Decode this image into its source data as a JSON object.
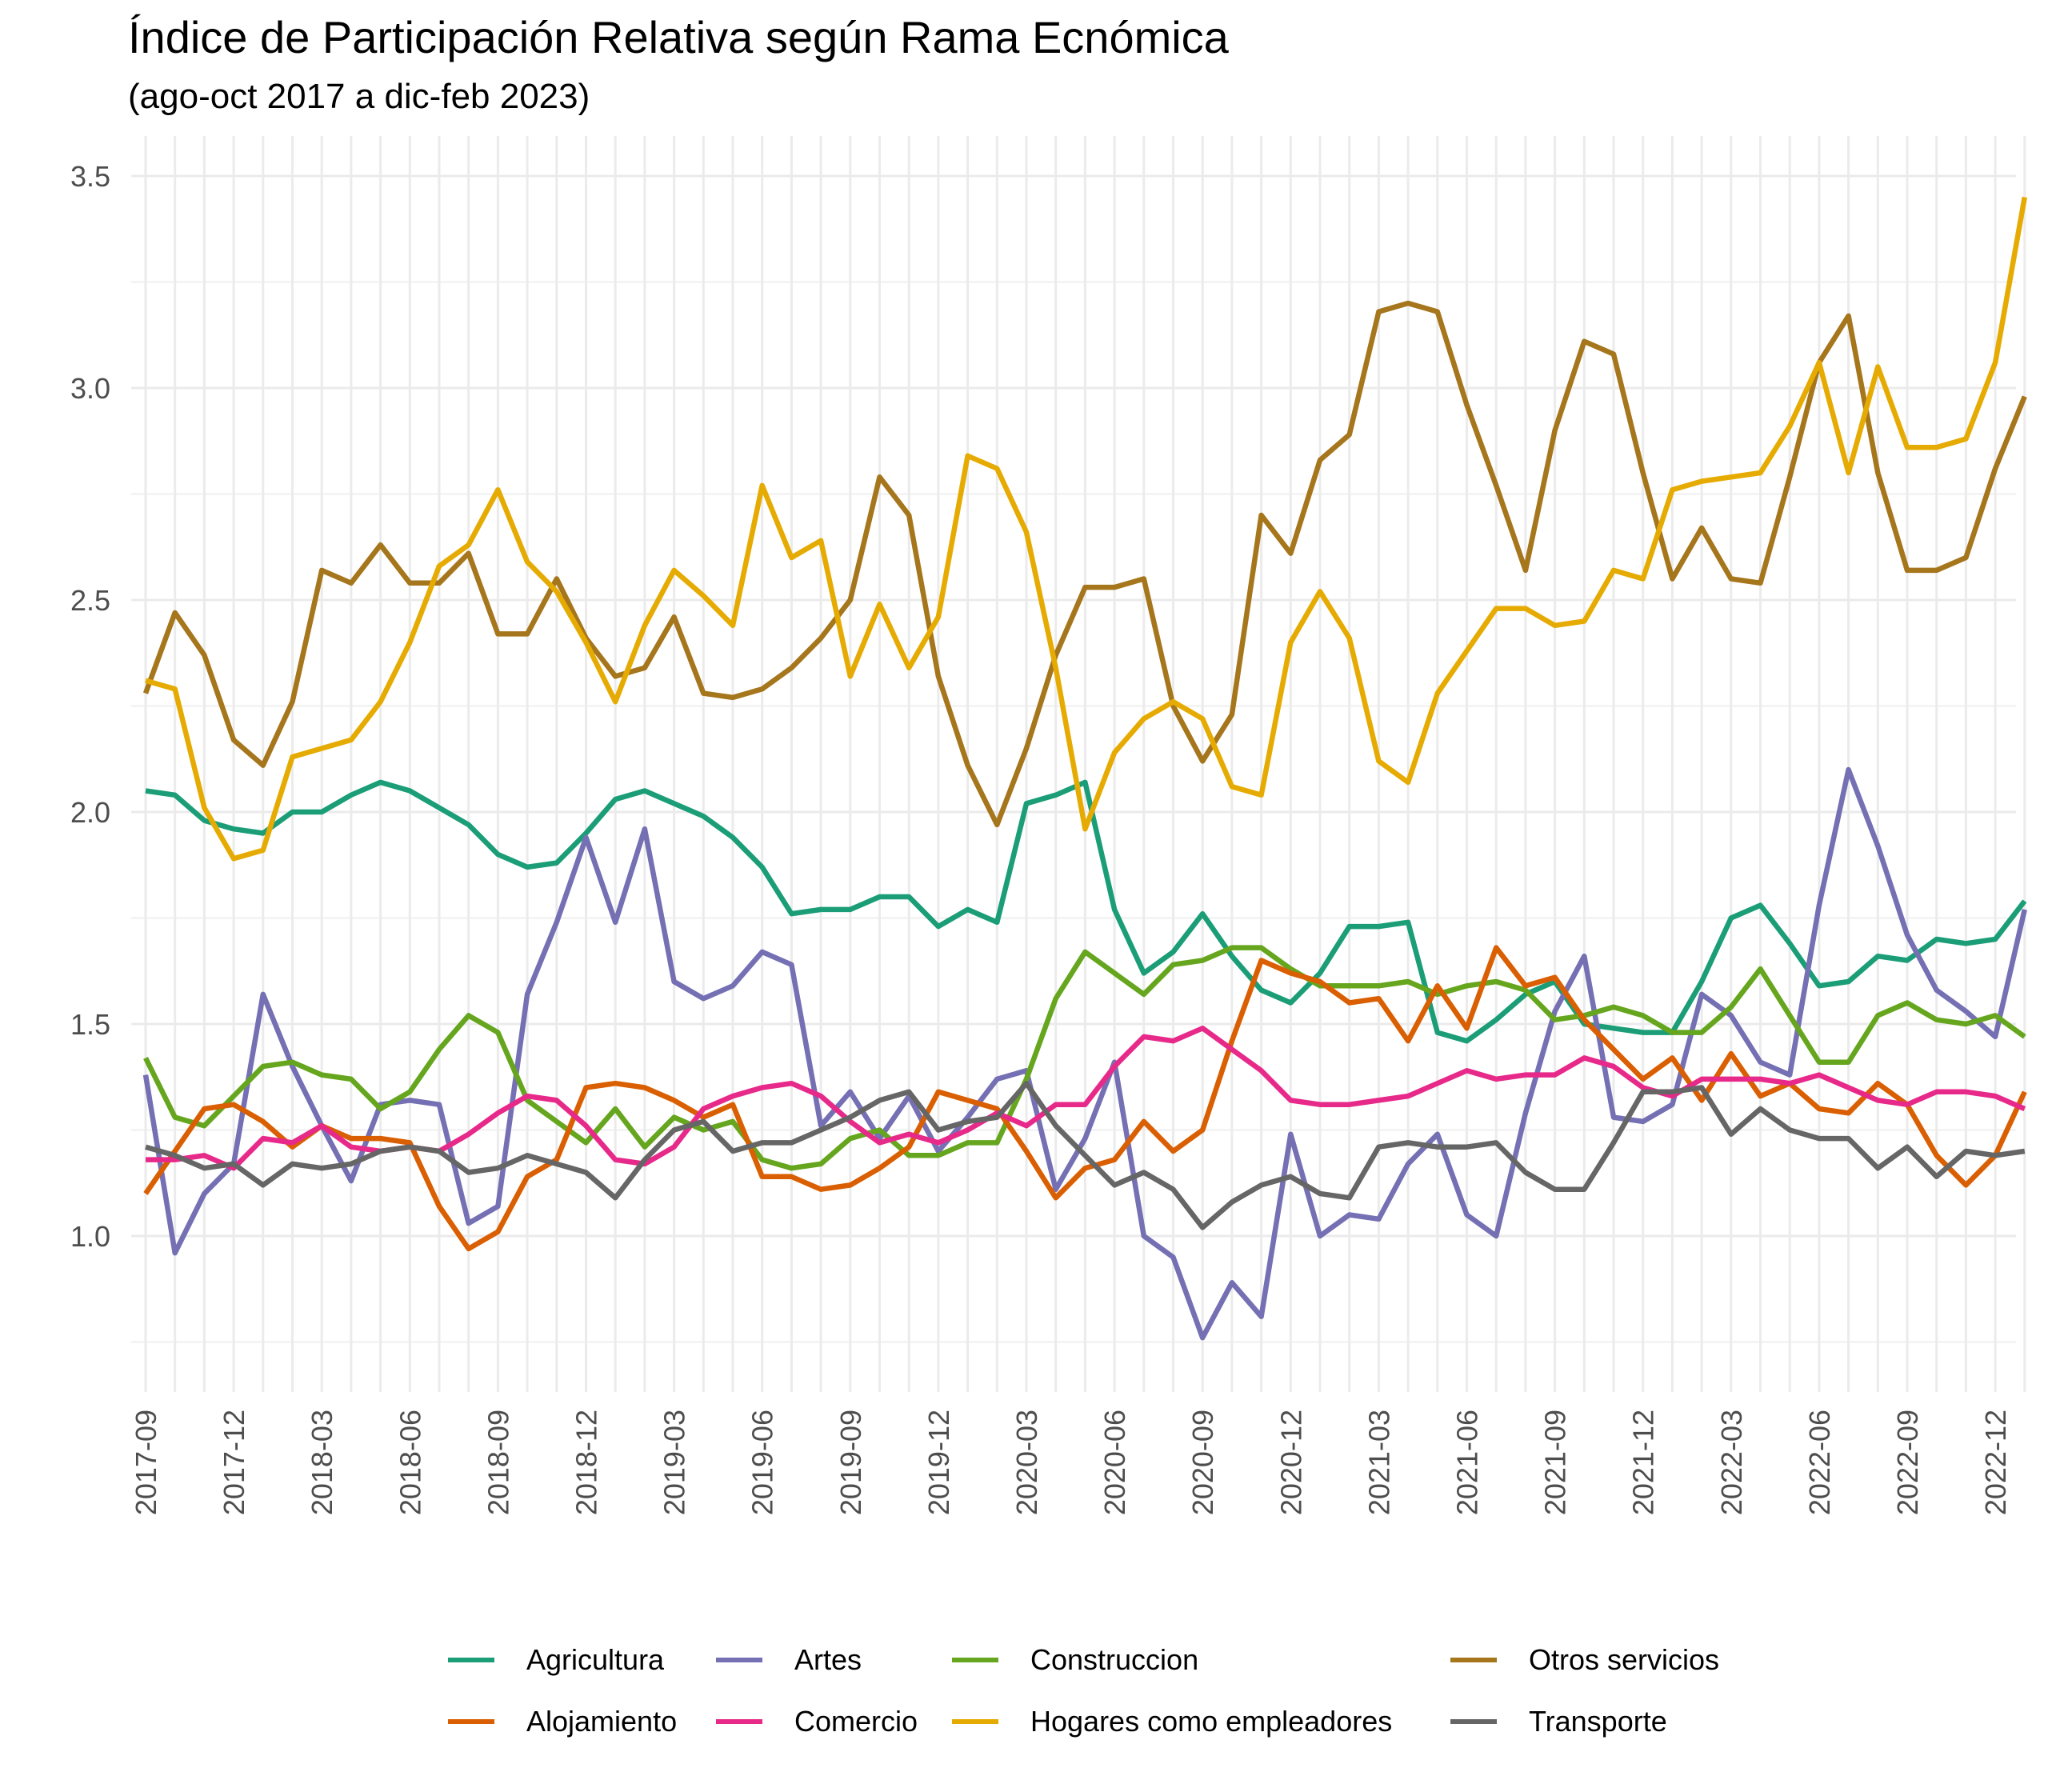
{
  "chart_data": {
    "type": "line",
    "title": "Índice de Participación Relativa según Rama Ecnómica",
    "subtitle": "(ago-oct 2017 a dic-feb 2023)",
    "xlabel": "",
    "ylabel": "",
    "ylim": [
      0.75,
      3.5
    ],
    "y_ticks": [
      "1.0",
      "1.5",
      "2.0",
      "2.5",
      "3.0",
      "3.5"
    ],
    "grid": true,
    "legend_position": "bottom",
    "x": [
      "2017-09",
      "2017-10",
      "2017-11",
      "2017-12",
      "2018-01",
      "2018-02",
      "2018-03",
      "2018-04",
      "2018-05",
      "2018-06",
      "2018-07",
      "2018-08",
      "2018-09",
      "2018-10",
      "2018-11",
      "2018-12",
      "2019-01",
      "2019-02",
      "2019-03",
      "2019-04",
      "2019-05",
      "2019-06",
      "2019-07",
      "2019-08",
      "2019-09",
      "2019-10",
      "2019-11",
      "2019-12",
      "2020-01",
      "2020-02",
      "2020-03",
      "2020-04",
      "2020-05",
      "2020-06",
      "2020-07",
      "2020-08",
      "2020-09",
      "2020-10",
      "2020-11",
      "2020-12",
      "2021-01",
      "2021-02",
      "2021-03",
      "2021-04",
      "2021-05",
      "2021-06",
      "2021-07",
      "2021-08",
      "2021-09",
      "2021-10",
      "2021-11",
      "2021-12",
      "2022-01",
      "2022-02",
      "2022-03",
      "2022-04",
      "2022-05",
      "2022-06",
      "2022-07",
      "2022-08",
      "2022-09",
      "2022-10",
      "2022-11",
      "2022-12",
      "2023-01"
    ],
    "x_tick_labels": [
      "2017-09",
      "2017-12",
      "2018-03",
      "2018-06",
      "2018-09",
      "2018-12",
      "2019-03",
      "2019-06",
      "2019-09",
      "2019-12",
      "2020-03",
      "2020-06",
      "2020-09",
      "2020-12",
      "2021-03",
      "2021-06",
      "2021-09",
      "2021-12",
      "2022-03",
      "2022-06",
      "2022-09",
      "2022-12"
    ],
    "series": [
      {
        "name": "Agricultura",
        "color": "#1B9E77",
        "values": [
          2.05,
          2.04,
          1.98,
          1.96,
          1.95,
          2.0,
          2.0,
          2.04,
          2.07,
          2.05,
          2.01,
          1.97,
          1.9,
          1.87,
          1.88,
          1.95,
          2.03,
          2.05,
          2.02,
          1.99,
          1.94,
          1.87,
          1.76,
          1.77,
          1.77,
          1.8,
          1.8,
          1.73,
          1.77,
          1.74,
          2.02,
          2.04,
          2.07,
          1.77,
          1.62,
          1.67,
          1.76,
          1.66,
          1.58,
          1.55,
          1.62,
          1.73,
          1.73,
          1.74,
          1.48,
          1.46,
          1.51,
          1.57,
          1.6,
          1.5,
          1.49,
          1.48,
          1.48,
          1.6,
          1.75,
          1.78,
          1.69,
          1.59,
          1.6,
          1.66,
          1.65,
          1.7,
          1.69,
          1.7,
          1.79
        ]
      },
      {
        "name": "Artes",
        "color": "#7570B3",
        "values": [
          1.38,
          0.96,
          1.1,
          1.17,
          1.57,
          1.4,
          1.26,
          1.13,
          1.31,
          1.32,
          1.31,
          1.03,
          1.07,
          1.57,
          1.74,
          1.94,
          1.74,
          1.96,
          1.6,
          1.56,
          1.59,
          1.67,
          1.64,
          1.26,
          1.34,
          1.23,
          1.33,
          1.2,
          1.28,
          1.37,
          1.39,
          1.11,
          1.23,
          1.41,
          1.0,
          0.95,
          0.76,
          0.89,
          0.81,
          1.24,
          1.0,
          1.05,
          1.04,
          1.17,
          1.24,
          1.05,
          1.0,
          1.29,
          1.53,
          1.66,
          1.28,
          1.27,
          1.31,
          1.57,
          1.52,
          1.41,
          1.38,
          1.78,
          2.1,
          1.92,
          1.71,
          1.58,
          1.53,
          1.47,
          1.77
        ]
      },
      {
        "name": "Construccion",
        "color": "#66A61E",
        "values": [
          1.42,
          1.28,
          1.26,
          1.33,
          1.4,
          1.41,
          1.38,
          1.37,
          1.3,
          1.34,
          1.44,
          1.52,
          1.48,
          1.32,
          1.27,
          1.22,
          1.3,
          1.21,
          1.28,
          1.25,
          1.27,
          1.18,
          1.16,
          1.17,
          1.23,
          1.25,
          1.19,
          1.19,
          1.22,
          1.22,
          1.37,
          1.56,
          1.67,
          1.62,
          1.57,
          1.64,
          1.65,
          1.68,
          1.68,
          1.63,
          1.59,
          1.59,
          1.59,
          1.6,
          1.57,
          1.59,
          1.6,
          1.58,
          1.51,
          1.52,
          1.54,
          1.52,
          1.48,
          1.48,
          1.54,
          1.63,
          1.52,
          1.41,
          1.41,
          1.52,
          1.55,
          1.51,
          1.5,
          1.52,
          1.47
        ]
      },
      {
        "name": "Otros servicios",
        "color": "#A6761D",
        "values": [
          2.28,
          2.47,
          2.37,
          2.17,
          2.11,
          2.26,
          2.57,
          2.54,
          2.63,
          2.54,
          2.54,
          2.61,
          2.42,
          2.42,
          2.55,
          2.41,
          2.32,
          2.34,
          2.46,
          2.28,
          2.27,
          2.29,
          2.34,
          2.41,
          2.5,
          2.79,
          2.7,
          2.32,
          2.11,
          1.97,
          2.15,
          2.37,
          2.53,
          2.53,
          2.55,
          2.25,
          2.12,
          2.23,
          2.7,
          2.61,
          2.83,
          2.89,
          3.18,
          3.2,
          3.18,
          2.96,
          2.77,
          2.57,
          2.9,
          3.11,
          3.08,
          2.8,
          2.55,
          2.67,
          2.55,
          2.54,
          2.79,
          3.06,
          3.17,
          2.8,
          2.57,
          2.57,
          2.6,
          2.81,
          2.98
        ]
      },
      {
        "name": "Alojamiento",
        "color": "#D95F02",
        "values": [
          1.1,
          1.2,
          1.3,
          1.31,
          1.27,
          1.21,
          1.26,
          1.23,
          1.23,
          1.22,
          1.07,
          0.97,
          1.01,
          1.14,
          1.18,
          1.35,
          1.36,
          1.35,
          1.32,
          1.28,
          1.31,
          1.14,
          1.14,
          1.11,
          1.12,
          1.16,
          1.21,
          1.34,
          1.32,
          1.3,
          1.2,
          1.09,
          1.16,
          1.18,
          1.27,
          1.2,
          1.25,
          1.46,
          1.65,
          1.62,
          1.6,
          1.55,
          1.56,
          1.46,
          1.59,
          1.49,
          1.68,
          1.59,
          1.61,
          1.51,
          1.44,
          1.37,
          1.42,
          1.32,
          1.43,
          1.33,
          1.36,
          1.3,
          1.29,
          1.36,
          1.31,
          1.19,
          1.12,
          1.19,
          1.34
        ]
      },
      {
        "name": "Comercio",
        "color": "#E7298A",
        "values": [
          1.18,
          1.18,
          1.19,
          1.16,
          1.23,
          1.22,
          1.26,
          1.21,
          1.2,
          1.21,
          1.2,
          1.24,
          1.29,
          1.33,
          1.32,
          1.26,
          1.18,
          1.17,
          1.21,
          1.3,
          1.33,
          1.35,
          1.36,
          1.33,
          1.27,
          1.22,
          1.24,
          1.22,
          1.25,
          1.29,
          1.26,
          1.31,
          1.31,
          1.4,
          1.47,
          1.46,
          1.49,
          1.44,
          1.39,
          1.32,
          1.31,
          1.31,
          1.32,
          1.33,
          1.36,
          1.39,
          1.37,
          1.38,
          1.38,
          1.42,
          1.4,
          1.35,
          1.33,
          1.37,
          1.37,
          1.37,
          1.36,
          1.38,
          1.35,
          1.32,
          1.31,
          1.34,
          1.34,
          1.33,
          1.3
        ]
      },
      {
        "name": "Hogares como empleadores",
        "color": "#E6AB02",
        "values": [
          2.31,
          2.29,
          2.01,
          1.89,
          1.91,
          2.13,
          2.15,
          2.17,
          2.26,
          2.4,
          2.58,
          2.63,
          2.76,
          2.59,
          2.52,
          2.4,
          2.26,
          2.44,
          2.57,
          2.51,
          2.44,
          2.77,
          2.6,
          2.64,
          2.32,
          2.49,
          2.34,
          2.46,
          2.84,
          2.81,
          2.66,
          2.34,
          1.96,
          2.14,
          2.22,
          2.26,
          2.22,
          2.06,
          2.04,
          2.4,
          2.52,
          2.41,
          2.12,
          2.07,
          2.28,
          2.38,
          2.48,
          2.48,
          2.44,
          2.45,
          2.57,
          2.55,
          2.76,
          2.78,
          2.79,
          2.8,
          2.91,
          3.06,
          2.8,
          3.05,
          2.86,
          2.86,
          2.88,
          3.06,
          3.45
        ]
      },
      {
        "name": "Transporte",
        "color": "#666666",
        "values": [
          1.21,
          1.19,
          1.16,
          1.17,
          1.12,
          1.17,
          1.16,
          1.17,
          1.2,
          1.21,
          1.2,
          1.15,
          1.16,
          1.19,
          1.17,
          1.15,
          1.09,
          1.18,
          1.25,
          1.27,
          1.2,
          1.22,
          1.22,
          1.25,
          1.28,
          1.32,
          1.34,
          1.25,
          1.27,
          1.28,
          1.36,
          1.26,
          1.19,
          1.12,
          1.15,
          1.11,
          1.02,
          1.08,
          1.12,
          1.14,
          1.1,
          1.09,
          1.21,
          1.22,
          1.21,
          1.21,
          1.22,
          1.15,
          1.11,
          1.11,
          1.22,
          1.34,
          1.34,
          1.35,
          1.24,
          1.3,
          1.25,
          1.23,
          1.23,
          1.16,
          1.21,
          1.14,
          1.2,
          1.19,
          1.2
        ]
      }
    ]
  },
  "legend": {
    "items": [
      {
        "label": "Agricultura",
        "color": "#1B9E77"
      },
      {
        "label": "Artes",
        "color": "#7570B3"
      },
      {
        "label": "Construccion",
        "color": "#66A61E"
      },
      {
        "label": "Otros servicios",
        "color": "#A6761D"
      },
      {
        "label": "Alojamiento",
        "color": "#D95F02"
      },
      {
        "label": "Comercio",
        "color": "#E7298A"
      },
      {
        "label": "Hogares como empleadores",
        "color": "#E6AB02"
      },
      {
        "label": "Transporte",
        "color": "#666666"
      }
    ]
  }
}
